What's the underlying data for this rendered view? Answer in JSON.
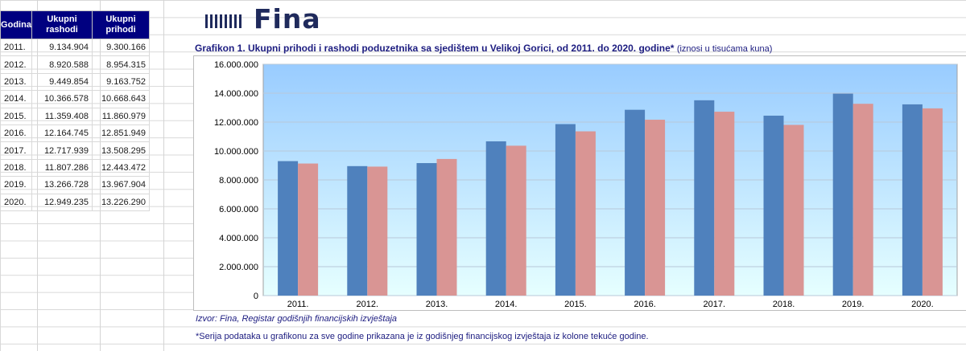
{
  "table": {
    "headers": [
      "Godina",
      "Ukupni rashodi",
      "Ukupni prihodi"
    ],
    "rows": [
      [
        "2011.",
        "9.134.904",
        "9.300.166"
      ],
      [
        "2012.",
        "8.920.588",
        "8.954.315"
      ],
      [
        "2013.",
        "9.449.854",
        "9.163.752"
      ],
      [
        "2014.",
        "10.366.578",
        "10.668.643"
      ],
      [
        "2015.",
        "11.359.408",
        "11.860.979"
      ],
      [
        "2016.",
        "12.164.745",
        "12.851.949"
      ],
      [
        "2017.",
        "12.717.939",
        "13.508.295"
      ],
      [
        "2018.",
        "11.807.286",
        "12.443.472"
      ],
      [
        "2019.",
        "13.266.728",
        "13.967.904"
      ],
      [
        "2020.",
        "12.949.235",
        "13.226.290"
      ]
    ]
  },
  "logo": {
    "text": "Fina"
  },
  "chart_title": {
    "main": "Grafikon 1. Ukupni prihodi i rashodi poduzetnika sa sjedištem u Velikoj Gorici, od 2011. do 2020. godine*",
    "units": "(iznosi u tisućama kuna)"
  },
  "source_note": "Izvor: Fina, Registar godišnjih financijskih izvještaja",
  "footnote": "*Serija podataka u grafikonu za sve godine prikazana je iz godišnjeg financijskog izvještaja iz kolone tekuće godine.",
  "colors": {
    "income_bar": "#4f81bd",
    "expense_bar": "#d99594",
    "plot_bg_top": "#99ccff",
    "plot_bg_bottom": "#e6ffff",
    "header_bg": "#000080"
  },
  "chart_data": {
    "type": "bar",
    "categories": [
      "2011.",
      "2012.",
      "2013.",
      "2014.",
      "2015.",
      "2016.",
      "2017.",
      "2018.",
      "2019.",
      "2020."
    ],
    "series": [
      {
        "values": [
          9300166,
          8954315,
          9163752,
          10668643,
          11860979,
          12851949,
          13508295,
          12443472,
          13967904,
          13226290
        ]
      },
      {
        "values": [
          9134904,
          8920588,
          9449854,
          10366578,
          11359408,
          12164745,
          12717939,
          11807286,
          13266728,
          12949235
        ]
      }
    ],
    "ylim": [
      0,
      16000000
    ],
    "yticks": [
      0,
      2000000,
      4000000,
      6000000,
      8000000,
      10000000,
      12000000,
      14000000,
      16000000
    ],
    "ytick_labels": [
      "0",
      "2.000.000",
      "4.000.000",
      "6.000.000",
      "8.000.000",
      "10.000.000",
      "12.000.000",
      "14.000.000",
      "16.000.000"
    ],
    "grid": true,
    "legend": "none"
  }
}
